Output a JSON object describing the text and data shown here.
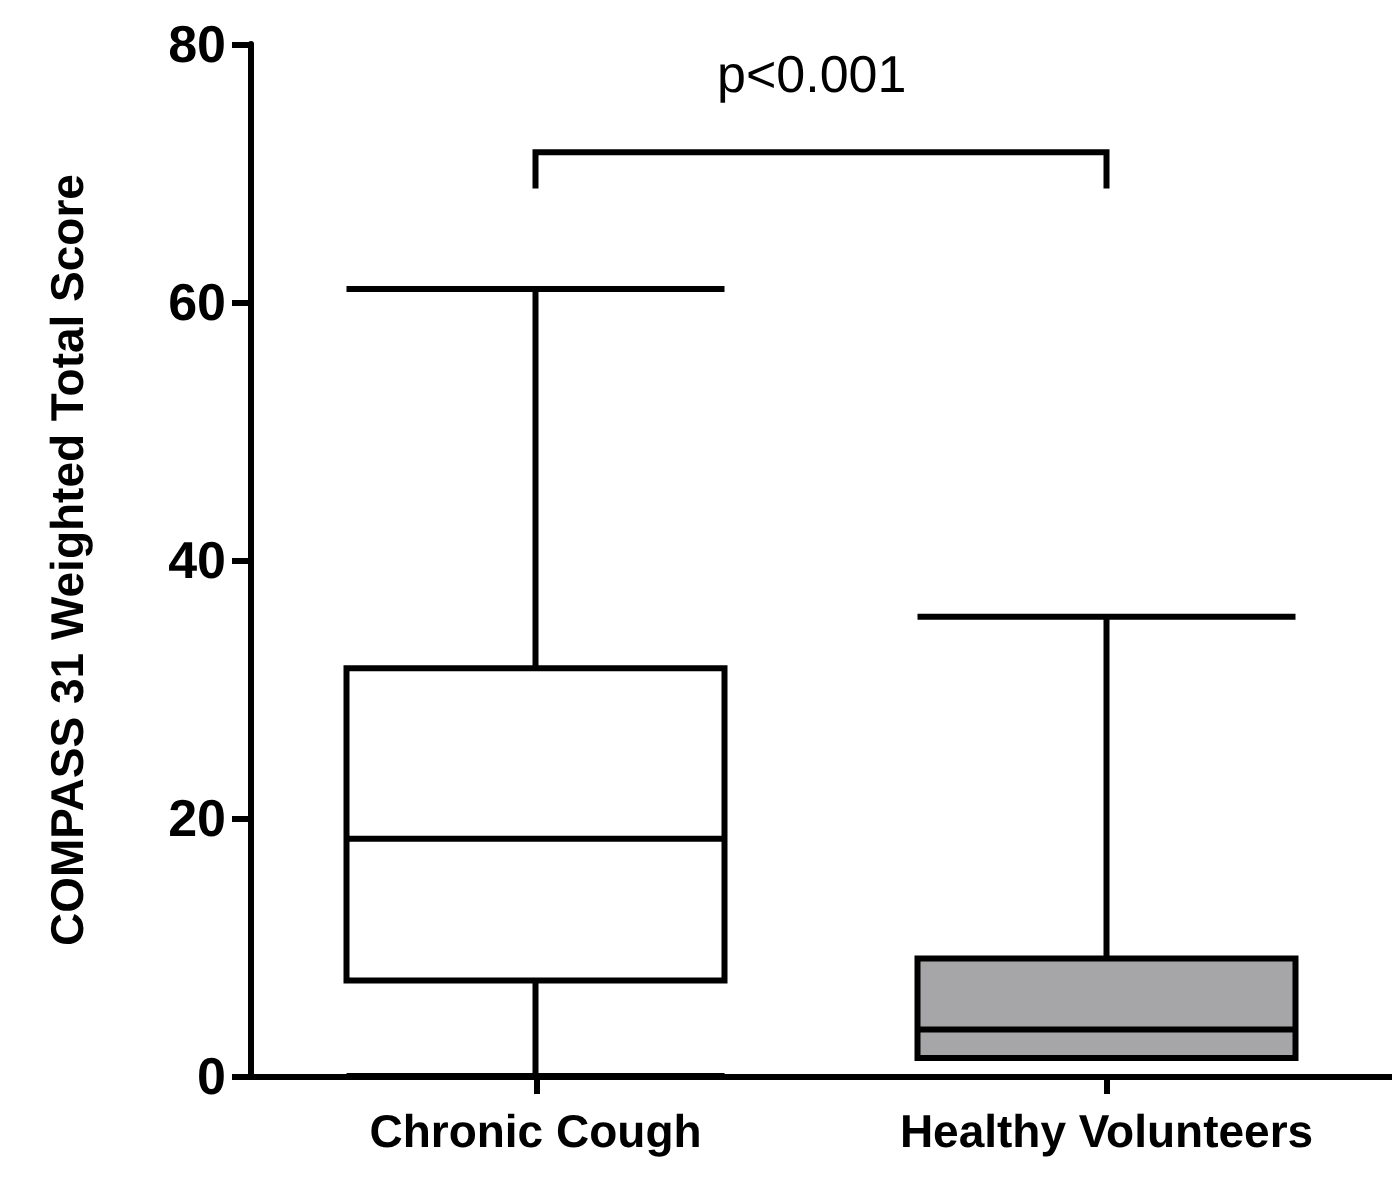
{
  "chart_data": {
    "type": "box",
    "ylabel": "COMPASS 31 Weighted Total Score",
    "categories": [
      "Chronic Cough",
      "Healthy Volunteers"
    ],
    "boxes": [
      {
        "low": 0,
        "q1": 7.4,
        "median": 18.4,
        "q3": 31.6,
        "high": 61.0
      },
      {
        "low": 1.4,
        "q1": 1.4,
        "median": 3.6,
        "q3": 9.1,
        "high": 35.6
      }
    ],
    "colors": [
      "#ffffff",
      "#a6a6a8"
    ],
    "ylim": [
      0,
      80
    ],
    "yticks": [
      0,
      20,
      40,
      60,
      80
    ],
    "annotations": [
      "p<0.001"
    ]
  }
}
